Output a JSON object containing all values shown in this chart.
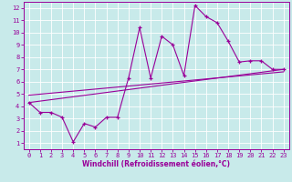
{
  "background_color": "#c8eaea",
  "grid_color": "#b8d8d8",
  "line_color": "#990099",
  "marker": "+",
  "xlim": [
    -0.5,
    23.5
  ],
  "ylim": [
    0.5,
    12.5
  ],
  "xticks": [
    0,
    1,
    2,
    3,
    4,
    5,
    6,
    7,
    8,
    9,
    10,
    11,
    12,
    13,
    14,
    15,
    16,
    17,
    18,
    19,
    20,
    21,
    22,
    23
  ],
  "yticks": [
    1,
    2,
    3,
    4,
    5,
    6,
    7,
    8,
    9,
    10,
    11,
    12
  ],
  "xlabel": "Windchill (Refroidissement éolien,°C)",
  "xlabel_color": "#990099",
  "tick_color": "#990099",
  "spine_color": "#990099",
  "zigzag_x": [
    0,
    1,
    2,
    3,
    4,
    5,
    6,
    7,
    8,
    9,
    10,
    11,
    12,
    13,
    14,
    15,
    16,
    17,
    18,
    19,
    20,
    21,
    22,
    23
  ],
  "zigzag_y": [
    4.3,
    3.5,
    3.5,
    3.1,
    1.1,
    2.6,
    2.3,
    3.1,
    3.1,
    6.3,
    10.4,
    6.3,
    9.7,
    9.0,
    6.5,
    12.2,
    11.3,
    10.8,
    9.3,
    7.6,
    7.7,
    7.7,
    7.0,
    7.0
  ],
  "line2_x": [
    0,
    23
  ],
  "line2_y": [
    4.3,
    7.0
  ],
  "line3_x": [
    0,
    23
  ],
  "line3_y": [
    4.9,
    6.8
  ],
  "figsize": [
    3.2,
    2.0
  ],
  "dpi": 100
}
